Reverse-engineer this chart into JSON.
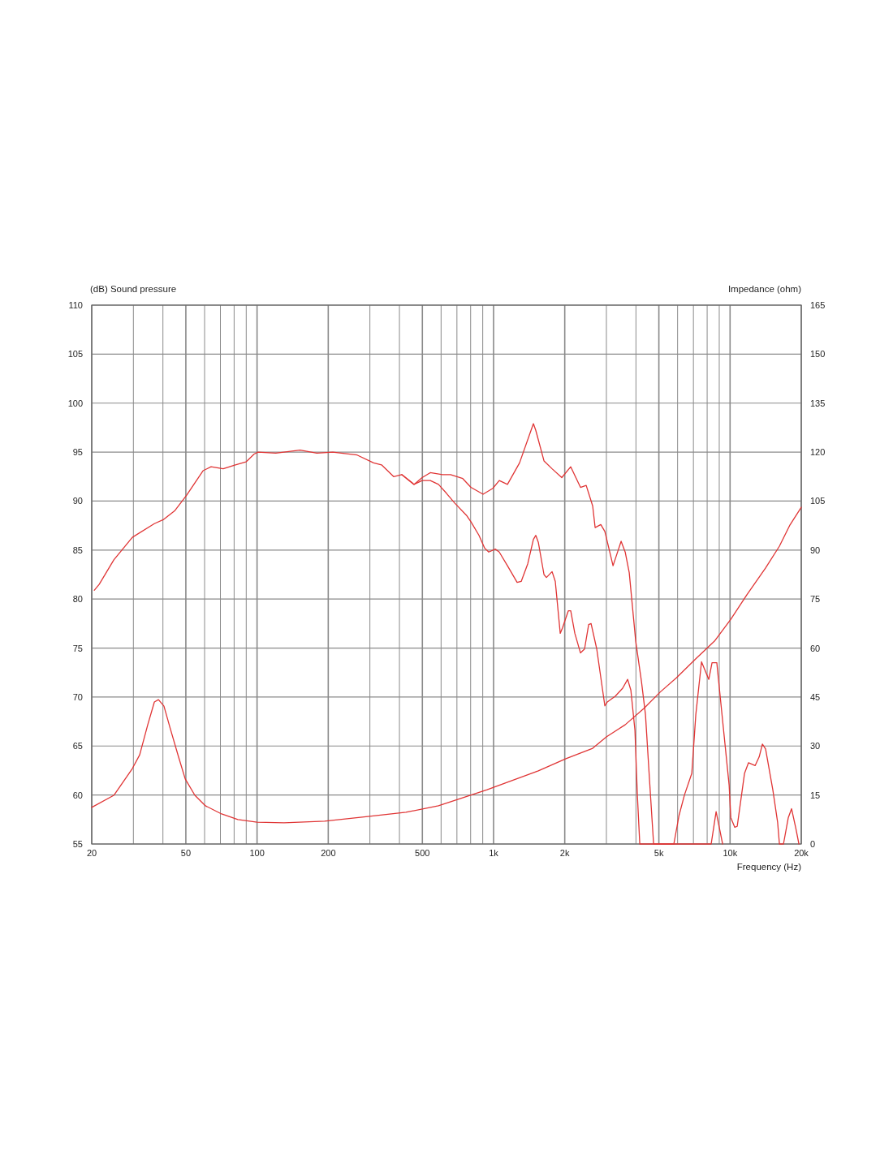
{
  "chart_data": {
    "type": "line",
    "ylabel": "(dB)  Sound pressure",
    "y2label": "Impedance  (ohm)",
    "xlabel": "Frequency  (Hz)",
    "log": "x",
    "grid": true,
    "marker": "none",
    "line_style": "solid",
    "xlim": [
      20,
      20000
    ],
    "xticks": [
      {
        "value": 20,
        "label": "20"
      },
      {
        "value": 30,
        "label": null
      },
      {
        "value": 40,
        "label": null
      },
      {
        "value": 50,
        "label": "50"
      },
      {
        "value": 60,
        "label": null
      },
      {
        "value": 70,
        "label": null
      },
      {
        "value": 80,
        "label": null
      },
      {
        "value": 90,
        "label": null
      },
      {
        "value": 100,
        "label": "100"
      },
      {
        "value": 200,
        "label": "200"
      },
      {
        "value": 300,
        "label": null
      },
      {
        "value": 400,
        "label": null
      },
      {
        "value": 500,
        "label": "500"
      },
      {
        "value": 600,
        "label": null
      },
      {
        "value": 700,
        "label": null
      },
      {
        "value": 800,
        "label": null
      },
      {
        "value": 900,
        "label": null
      },
      {
        "value": 1000,
        "label": "1k"
      },
      {
        "value": 2000,
        "label": "2k"
      },
      {
        "value": 3000,
        "label": null
      },
      {
        "value": 4000,
        "label": null
      },
      {
        "value": 5000,
        "label": "5k"
      },
      {
        "value": 6000,
        "label": null
      },
      {
        "value": 7000,
        "label": null
      },
      {
        "value": 8000,
        "label": null
      },
      {
        "value": 9000,
        "label": null
      },
      {
        "value": 10000,
        "label": "10k"
      },
      {
        "value": 20000,
        "label": "20k"
      }
    ],
    "ylim": [
      55,
      110
    ],
    "yticks": [
      55,
      60,
      65,
      70,
      75,
      80,
      85,
      90,
      95,
      100,
      105,
      110
    ],
    "y2lim": [
      0,
      165
    ],
    "y2ticks": [
      0,
      15,
      30,
      45,
      60,
      75,
      90,
      105,
      120,
      135,
      150,
      165
    ],
    "series": [
      {
        "color": "#e03535",
        "x": [
          20.5,
          21.5,
          24.8,
          29.7,
          36.8,
          40.1,
          44.8,
          50.4,
          59.1,
          63.9,
          71.9,
          81,
          89.8,
          97.2,
          101,
          120,
          152,
          179,
          209,
          265,
          311,
          336,
          378,
          409,
          461,
          499,
          540,
          608,
          658,
          741,
          802,
          903,
          993,
          1057,
          1145,
          1288,
          1474,
          1509,
          1634,
          1768,
          1943,
          2120,
          2331,
          2464,
          2625,
          2688,
          2841,
          2955,
          3200,
          3462,
          3602,
          3747,
          3991,
          4220,
          4389,
          4563,
          4750,
          5785,
          6083,
          6414,
          6889,
          7164,
          7573,
          8130,
          8390,
          8790,
          9070,
          9910,
          10070,
          10470,
          10720,
          11510,
          11970,
          12760,
          13280,
          13700,
          14130,
          15170,
          15890,
          16170,
          16820,
          17630,
          18200,
          18930,
          19550
        ],
        "values": [
          80.9,
          81.5,
          84.0,
          86.3,
          87.7,
          88.1,
          89.0,
          90.6,
          93.1,
          93.5,
          93.3,
          93.7,
          94.0,
          94.8,
          95.0,
          94.9,
          95.2,
          94.9,
          95.0,
          94.7,
          93.9,
          93.7,
          92.5,
          92.7,
          91.7,
          92.4,
          92.9,
          92.7,
          92.7,
          92.3,
          91.4,
          90.7,
          91.3,
          92.1,
          91.7,
          93.9,
          97.9,
          97.2,
          94.1,
          93.3,
          92.4,
          93.5,
          91.4,
          91.6,
          89.5,
          87.3,
          87.6,
          86.9,
          83.4,
          85.9,
          84.8,
          82.7,
          75.7,
          71.6,
          68.2,
          61.6,
          55,
          55,
          57.9,
          60,
          62.2,
          68.2,
          73.6,
          71.8,
          73.5,
          73.5,
          70.2,
          61.0,
          57.7,
          56.7,
          56.8,
          62.2,
          63.3,
          63.0,
          63.9,
          65.2,
          64.7,
          60.5,
          57.2,
          55,
          55,
          57.7,
          58.6,
          56.7,
          55
        ]
      },
      {
        "color": "#e03535",
        "x": [
          409,
          461,
          499,
          540,
          585,
          632,
          685,
          771,
          802,
          868,
          917,
          954,
          1017,
          1057,
          1145,
          1258,
          1309,
          1395,
          1474,
          1509,
          1546,
          1634,
          1673,
          1768,
          1824,
          1914,
          1959,
          2070,
          2120,
          2206,
          2331,
          2425,
          2524,
          2584,
          2731,
          2955,
          3027,
          3275,
          3515,
          3689,
          3807,
          3961,
          4055,
          4152,
          8320,
          8730,
          9300
        ],
        "values": [
          92.7,
          91.7,
          92.1,
          92.1,
          91.7,
          90.8,
          89.8,
          88.5,
          87.9,
          86.5,
          85.2,
          84.8,
          85.1,
          84.8,
          83.4,
          81.7,
          81.8,
          83.6,
          86.1,
          86.5,
          85.8,
          82.5,
          82.2,
          82.8,
          81.8,
          76.5,
          77.1,
          78.8,
          78.8,
          76.5,
          74.5,
          74.9,
          77.4,
          77.5,
          74.9,
          69.1,
          69.5,
          70.1,
          70.9,
          71.8,
          70.7,
          66.6,
          60.0,
          55,
          55,
          58.3,
          55
        ]
      },
      {
        "color": "#e03535",
        "axis": "y2",
        "x": [
          20,
          24.8,
          29.7,
          31.9,
          34.5,
          36.8,
          38.3,
          40.4,
          42.9,
          46.6,
          49.7,
          54.6,
          60.5,
          70.8,
          83,
          100,
          130,
          193,
          294,
          426,
          585,
          939,
          1546,
          2023,
          2625,
          3000,
          3600,
          4320,
          5060,
          5930,
          7164,
          8590,
          10070,
          11780,
          14130,
          16170,
          17920,
          20000
        ],
        "values": [
          11.2,
          14.9,
          23.1,
          27.3,
          36.5,
          43.5,
          44.2,
          42.2,
          35.5,
          26.6,
          19.9,
          14.9,
          11.7,
          9.2,
          7.5,
          6.7,
          6.5,
          7.0,
          8.4,
          9.7,
          11.7,
          16.6,
          22.4,
          26.1,
          29.3,
          32.8,
          36.5,
          41.5,
          46.5,
          50.9,
          56.7,
          62.1,
          68.8,
          76.3,
          84.5,
          91.2,
          97.7,
          103.1
        ]
      }
    ]
  }
}
